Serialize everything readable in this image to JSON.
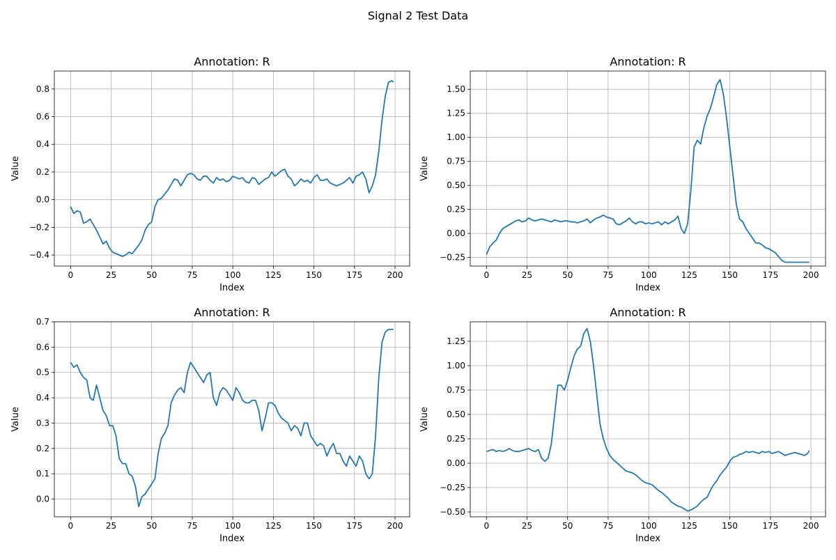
{
  "figure": {
    "suptitle": "Signal 2 Test Data"
  },
  "chart_data": [
    {
      "type": "line",
      "title": "Annotation: R",
      "xlabel": "Index",
      "ylabel": "Value",
      "xlim": [
        -10,
        209
      ],
      "ylim": [
        -0.48,
        0.93
      ],
      "xticks": [
        0,
        25,
        50,
        75,
        100,
        125,
        150,
        175,
        200
      ],
      "yticks": [
        -0.4,
        -0.2,
        0.0,
        0.2,
        0.4,
        0.6,
        0.8
      ],
      "ytick_labels": [
        "−0.4",
        "−0.2",
        "0.0",
        "0.2",
        "0.4",
        "0.6",
        "0.8"
      ],
      "grid": true,
      "color": "#1f77b4",
      "series": [
        {
          "x": [
            0,
            2,
            4,
            6,
            8,
            10,
            12,
            14,
            16,
            18,
            20,
            22,
            24,
            26,
            28,
            30,
            32,
            34,
            36,
            38,
            40,
            42,
            44,
            46,
            48,
            50,
            52,
            54,
            56,
            58,
            60,
            62,
            64,
            66,
            68,
            70,
            72,
            74,
            76,
            78,
            80,
            82,
            84,
            86,
            88,
            90,
            92,
            94,
            96,
            98,
            100,
            102,
            104,
            106,
            108,
            110,
            112,
            114,
            116,
            118,
            120,
            122,
            124,
            126,
            128,
            130,
            132,
            134,
            136,
            138,
            140,
            142,
            144,
            146,
            148,
            150,
            152,
            154,
            156,
            158,
            160,
            162,
            164,
            166,
            168,
            170,
            172,
            174,
            176,
            178,
            180,
            182,
            184,
            186,
            188,
            190,
            192,
            194,
            196,
            198,
            199
          ],
          "y": [
            -0.05,
            -0.1,
            -0.08,
            -0.09,
            -0.17,
            -0.16,
            -0.14,
            -0.18,
            -0.22,
            -0.27,
            -0.32,
            -0.3,
            -0.35,
            -0.38,
            -0.39,
            -0.4,
            -0.41,
            -0.4,
            -0.38,
            -0.39,
            -0.36,
            -0.33,
            -0.29,
            -0.22,
            -0.18,
            -0.16,
            -0.05,
            0.0,
            0.01,
            0.04,
            0.07,
            0.11,
            0.15,
            0.14,
            0.1,
            0.14,
            0.18,
            0.19,
            0.18,
            0.15,
            0.14,
            0.17,
            0.17,
            0.14,
            0.12,
            0.16,
            0.14,
            0.15,
            0.13,
            0.14,
            0.17,
            0.16,
            0.15,
            0.16,
            0.13,
            0.12,
            0.16,
            0.15,
            0.11,
            0.13,
            0.15,
            0.16,
            0.2,
            0.17,
            0.19,
            0.21,
            0.22,
            0.17,
            0.15,
            0.1,
            0.12,
            0.15,
            0.13,
            0.14,
            0.12,
            0.16,
            0.18,
            0.14,
            0.14,
            0.15,
            0.12,
            0.11,
            0.1,
            0.11,
            0.12,
            0.14,
            0.16,
            0.12,
            0.17,
            0.18,
            0.2,
            0.15,
            0.05,
            0.1,
            0.18,
            0.35,
            0.58,
            0.75,
            0.85,
            0.86,
            0.85
          ]
        }
      ]
    },
    {
      "type": "line",
      "title": "Annotation: R",
      "xlabel": "Index",
      "ylabel": "Value",
      "xlim": [
        -10,
        209
      ],
      "ylim": [
        -0.34,
        1.69
      ],
      "xticks": [
        0,
        25,
        50,
        75,
        100,
        125,
        150,
        175,
        200
      ],
      "yticks": [
        -0.25,
        0.0,
        0.25,
        0.5,
        0.75,
        1.0,
        1.25,
        1.5
      ],
      "ytick_labels": [
        "−0.25",
        "0.00",
        "0.25",
        "0.50",
        "0.75",
        "1.00",
        "1.25",
        "1.50"
      ],
      "grid": true,
      "color": "#1f77b4",
      "series": [
        {
          "x": [
            0,
            2,
            4,
            6,
            8,
            10,
            12,
            14,
            16,
            18,
            20,
            22,
            24,
            26,
            28,
            30,
            32,
            34,
            36,
            38,
            40,
            42,
            44,
            46,
            48,
            50,
            52,
            54,
            56,
            58,
            60,
            62,
            64,
            66,
            68,
            70,
            72,
            74,
            76,
            78,
            80,
            82,
            84,
            86,
            88,
            90,
            92,
            94,
            96,
            98,
            100,
            102,
            104,
            106,
            108,
            110,
            112,
            114,
            116,
            118,
            120,
            122,
            124,
            126,
            128,
            130,
            132,
            134,
            136,
            138,
            140,
            142,
            144,
            146,
            148,
            150,
            152,
            154,
            156,
            158,
            160,
            162,
            164,
            166,
            168,
            170,
            172,
            174,
            176,
            178,
            180,
            182,
            184,
            186,
            188,
            190,
            192,
            194,
            196,
            198,
            199
          ],
          "y": [
            -0.22,
            -0.14,
            -0.1,
            -0.07,
            0.0,
            0.05,
            0.07,
            0.09,
            0.11,
            0.13,
            0.14,
            0.12,
            0.13,
            0.16,
            0.14,
            0.13,
            0.14,
            0.15,
            0.14,
            0.13,
            0.12,
            0.14,
            0.13,
            0.12,
            0.13,
            0.13,
            0.12,
            0.12,
            0.11,
            0.12,
            0.13,
            0.15,
            0.11,
            0.14,
            0.16,
            0.17,
            0.19,
            0.17,
            0.16,
            0.15,
            0.1,
            0.09,
            0.11,
            0.13,
            0.16,
            0.12,
            0.1,
            0.12,
            0.12,
            0.1,
            0.11,
            0.1,
            0.11,
            0.12,
            0.09,
            0.12,
            0.1,
            0.12,
            0.14,
            0.18,
            0.05,
            0.0,
            0.1,
            0.45,
            0.9,
            0.97,
            0.93,
            1.1,
            1.22,
            1.3,
            1.42,
            1.55,
            1.6,
            1.45,
            1.2,
            0.9,
            0.6,
            0.3,
            0.15,
            0.12,
            0.05,
            0.0,
            -0.05,
            -0.1,
            -0.1,
            -0.12,
            -0.15,
            -0.16,
            -0.18,
            -0.2,
            -0.24,
            -0.28,
            -0.3,
            -0.3,
            -0.3,
            -0.3,
            -0.3,
            -0.3,
            -0.3,
            -0.3,
            -0.3
          ]
        }
      ]
    },
    {
      "type": "line",
      "title": "Annotation: R",
      "xlabel": "Index",
      "ylabel": "Value",
      "xlim": [
        -10,
        209
      ],
      "ylim": [
        -0.07,
        0.7
      ],
      "xticks": [
        0,
        25,
        50,
        75,
        100,
        125,
        150,
        175,
        200
      ],
      "yticks": [
        0.0,
        0.1,
        0.2,
        0.3,
        0.4,
        0.5,
        0.6,
        0.7
      ],
      "ytick_labels": [
        "0.0",
        "0.1",
        "0.2",
        "0.3",
        "0.4",
        "0.5",
        "0.6",
        "0.7"
      ],
      "grid": true,
      "color": "#1f77b4",
      "series": [
        {
          "x": [
            0,
            2,
            4,
            6,
            8,
            10,
            12,
            14,
            16,
            18,
            20,
            22,
            24,
            26,
            28,
            30,
            32,
            34,
            36,
            38,
            40,
            42,
            44,
            46,
            48,
            50,
            52,
            54,
            56,
            58,
            60,
            62,
            64,
            66,
            68,
            70,
            72,
            74,
            76,
            78,
            80,
            82,
            84,
            86,
            88,
            90,
            92,
            94,
            96,
            98,
            100,
            102,
            104,
            106,
            108,
            110,
            112,
            114,
            116,
            118,
            120,
            122,
            124,
            126,
            128,
            130,
            132,
            134,
            136,
            138,
            140,
            142,
            144,
            146,
            148,
            150,
            152,
            154,
            156,
            158,
            160,
            162,
            164,
            166,
            168,
            170,
            172,
            174,
            176,
            178,
            180,
            182,
            184,
            186,
            188,
            190,
            192,
            194,
            196,
            198,
            199
          ],
          "y": [
            0.54,
            0.52,
            0.53,
            0.5,
            0.48,
            0.47,
            0.4,
            0.39,
            0.45,
            0.4,
            0.35,
            0.33,
            0.29,
            0.29,
            0.25,
            0.16,
            0.14,
            0.14,
            0.1,
            0.09,
            0.05,
            -0.03,
            0.01,
            0.02,
            0.04,
            0.06,
            0.08,
            0.18,
            0.24,
            0.26,
            0.29,
            0.38,
            0.41,
            0.43,
            0.44,
            0.42,
            0.5,
            0.54,
            0.52,
            0.5,
            0.48,
            0.46,
            0.49,
            0.5,
            0.4,
            0.37,
            0.42,
            0.44,
            0.43,
            0.41,
            0.39,
            0.44,
            0.42,
            0.39,
            0.38,
            0.38,
            0.39,
            0.39,
            0.35,
            0.27,
            0.32,
            0.38,
            0.38,
            0.37,
            0.34,
            0.32,
            0.31,
            0.3,
            0.27,
            0.29,
            0.28,
            0.25,
            0.3,
            0.3,
            0.25,
            0.23,
            0.21,
            0.22,
            0.21,
            0.17,
            0.2,
            0.22,
            0.18,
            0.18,
            0.15,
            0.13,
            0.17,
            0.15,
            0.13,
            0.17,
            0.15,
            0.1,
            0.08,
            0.1,
            0.25,
            0.48,
            0.62,
            0.66,
            0.67,
            0.67,
            0.67
          ]
        }
      ]
    },
    {
      "type": "line",
      "title": "Annotation: R",
      "xlabel": "Index",
      "ylabel": "Value",
      "xlim": [
        -10,
        209
      ],
      "ylim": [
        -0.55,
        1.45
      ],
      "xticks": [
        0,
        25,
        50,
        75,
        100,
        125,
        150,
        175,
        200
      ],
      "yticks": [
        -0.5,
        -0.25,
        0.0,
        0.25,
        0.5,
        0.75,
        1.0,
        1.25
      ],
      "ytick_labels": [
        "−0.50",
        "−0.25",
        "0.00",
        "0.25",
        "0.50",
        "0.75",
        "1.00",
        "1.25"
      ],
      "grid": true,
      "color": "#1f77b4",
      "series": [
        {
          "x": [
            0,
            2,
            4,
            6,
            8,
            10,
            12,
            14,
            16,
            18,
            20,
            22,
            24,
            26,
            28,
            30,
            32,
            34,
            36,
            38,
            40,
            42,
            44,
            46,
            48,
            50,
            52,
            54,
            56,
            58,
            60,
            62,
            64,
            66,
            68,
            70,
            72,
            74,
            76,
            78,
            80,
            82,
            84,
            86,
            88,
            90,
            92,
            94,
            96,
            98,
            100,
            102,
            104,
            106,
            108,
            110,
            112,
            114,
            116,
            118,
            120,
            122,
            124,
            126,
            128,
            130,
            132,
            134,
            136,
            138,
            140,
            142,
            144,
            146,
            148,
            150,
            152,
            154,
            156,
            158,
            160,
            162,
            164,
            166,
            168,
            170,
            172,
            174,
            176,
            178,
            180,
            182,
            184,
            186,
            188,
            190,
            192,
            194,
            196,
            198,
            199
          ],
          "y": [
            0.12,
            0.13,
            0.14,
            0.12,
            0.13,
            0.12,
            0.13,
            0.15,
            0.13,
            0.12,
            0.12,
            0.13,
            0.14,
            0.15,
            0.13,
            0.12,
            0.14,
            0.05,
            0.02,
            0.05,
            0.2,
            0.5,
            0.8,
            0.8,
            0.75,
            0.85,
            0.98,
            1.1,
            1.17,
            1.2,
            1.33,
            1.38,
            1.25,
            1.0,
            0.7,
            0.4,
            0.25,
            0.15,
            0.08,
            0.04,
            0.01,
            -0.02,
            -0.05,
            -0.08,
            -0.09,
            -0.1,
            -0.12,
            -0.15,
            -0.18,
            -0.2,
            -0.21,
            -0.22,
            -0.25,
            -0.28,
            -0.3,
            -0.33,
            -0.36,
            -0.4,
            -0.42,
            -0.44,
            -0.45,
            -0.47,
            -0.49,
            -0.48,
            -0.46,
            -0.44,
            -0.4,
            -0.37,
            -0.35,
            -0.28,
            -0.22,
            -0.18,
            -0.12,
            -0.08,
            -0.04,
            0.02,
            0.06,
            0.07,
            0.09,
            0.1,
            0.12,
            0.11,
            0.12,
            0.11,
            0.1,
            0.12,
            0.11,
            0.12,
            0.1,
            0.11,
            0.12,
            0.1,
            0.08,
            0.09,
            0.1,
            0.11,
            0.1,
            0.09,
            0.08,
            0.1,
            0.13
          ]
        }
      ]
    }
  ]
}
